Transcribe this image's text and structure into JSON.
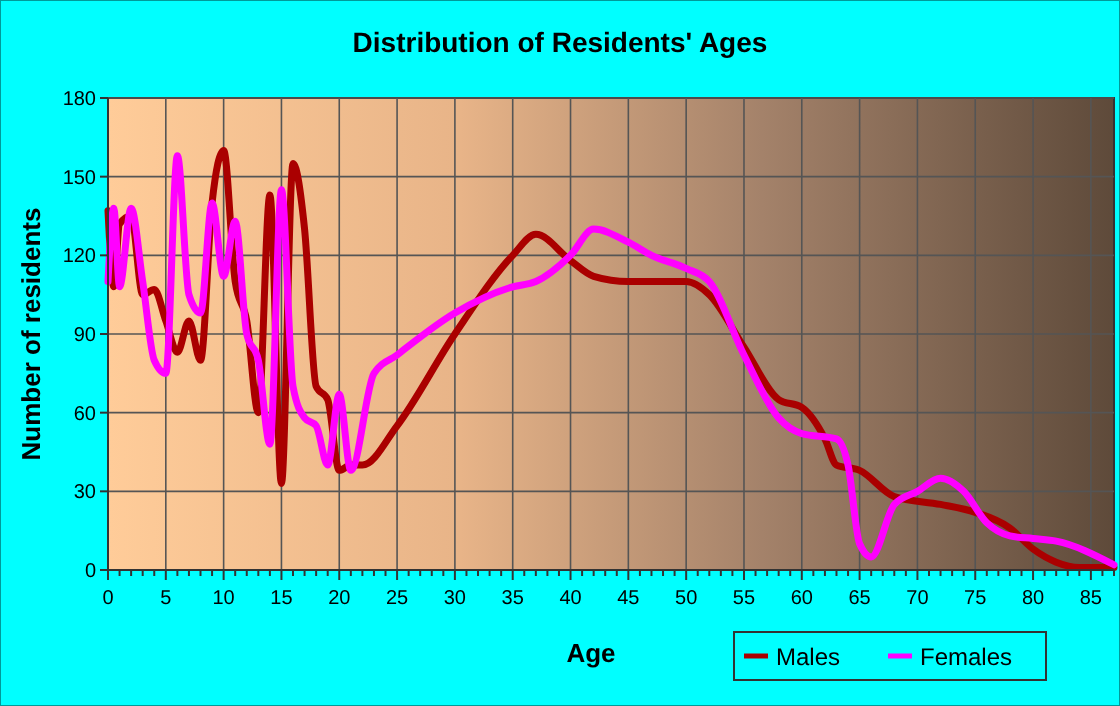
{
  "chart_data": {
    "type": "line",
    "title": "Distribution of Residents' Ages",
    "xlabel": "Age",
    "ylabel": "Number of residents",
    "xlim": [
      0,
      87
    ],
    "xticks": [
      0,
      5,
      10,
      15,
      20,
      25,
      30,
      35,
      40,
      45,
      50,
      55,
      60,
      65,
      70,
      75,
      80,
      85
    ],
    "ylim": [
      0,
      180
    ],
    "yticks": [
      0,
      30,
      60,
      90,
      120,
      150,
      180
    ],
    "grid": true,
    "legend": "bottom right",
    "line_style": "solid",
    "marker": "none",
    "series": [
      {
        "name": "Males",
        "color": "#aa0000",
        "x": [
          0,
          0.5,
          1,
          2,
          3,
          4,
          5,
          6,
          7,
          8,
          9,
          10,
          11,
          12,
          13,
          14,
          15,
          16,
          17,
          18,
          19,
          20,
          21,
          22,
          25,
          30,
          35,
          37,
          40,
          42,
          45,
          48,
          50,
          52,
          55,
          58,
          60,
          62,
          63,
          65,
          68,
          72,
          75,
          78,
          80,
          82,
          84,
          87
        ],
        "values": [
          137,
          108,
          132,
          135,
          105,
          107,
          95,
          83,
          95,
          80,
          140,
          160,
          110,
          95,
          60,
          143,
          33,
          155,
          130,
          70,
          65,
          38,
          40,
          40,
          55,
          90,
          120,
          128,
          118,
          112,
          110,
          110,
          110,
          105,
          85,
          65,
          62,
          50,
          40,
          38,
          28,
          25,
          22,
          16,
          8,
          3,
          1,
          1
        ]
      },
      {
        "name": "Females",
        "color": "#ff00ff",
        "x": [
          0,
          0.5,
          1,
          2,
          3,
          4,
          5,
          6,
          7,
          8,
          9,
          10,
          11,
          12,
          13,
          14,
          15,
          16,
          17,
          18,
          19,
          20,
          21,
          23,
          25,
          30,
          35,
          37,
          40,
          42,
          45,
          47,
          50,
          52,
          55,
          58,
          60,
          63,
          64,
          65,
          66,
          68,
          70,
          72,
          74,
          76,
          78,
          80,
          82,
          87
        ],
        "values": [
          110,
          138,
          108,
          138,
          110,
          80,
          75,
          158,
          105,
          98,
          140,
          112,
          133,
          90,
          80,
          48,
          145,
          70,
          58,
          55,
          40,
          67,
          38,
          75,
          82,
          98,
          108,
          110,
          120,
          130,
          125,
          120,
          115,
          110,
          82,
          58,
          52,
          50,
          40,
          10,
          5,
          25,
          30,
          35,
          30,
          18,
          13,
          12,
          11,
          2
        ]
      }
    ]
  }
}
